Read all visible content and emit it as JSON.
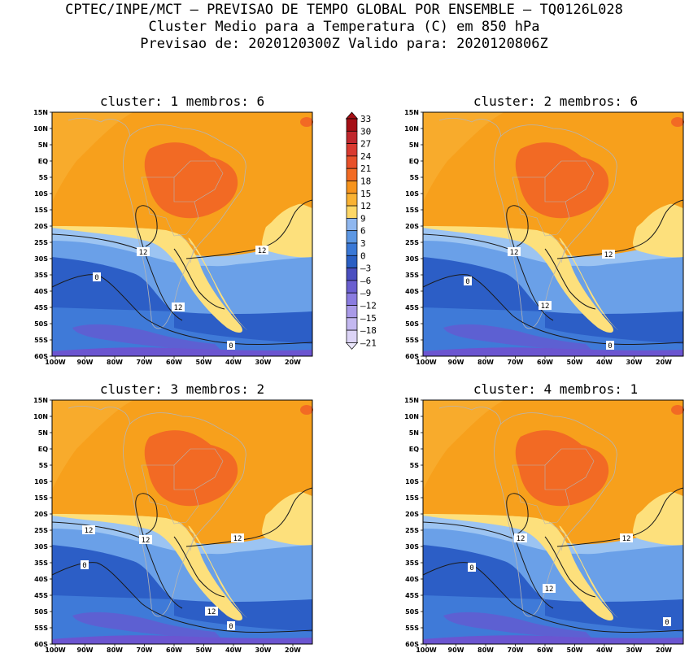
{
  "header": {
    "line1": "CPTEC/INPE/MCT – PREVISAO DE TEMPO GLOBAL POR ENSEMBLE – TQ0126L028",
    "line2": "Cluster Medio para a Temperatura (C) em 850 hPa",
    "line3": "Previsao de: 2020120300Z   Valido para: 2020120806Z"
  },
  "map": {
    "lat_ticks": [
      "15N",
      "10N",
      "5N",
      "EQ",
      "5S",
      "10S",
      "15S",
      "20S",
      "25S",
      "30S",
      "35S",
      "40S",
      "45S",
      "50S",
      "55S",
      "60S"
    ],
    "lon_ticks": [
      "100W",
      "90W",
      "80W",
      "70W",
      "60W",
      "50W",
      "40W",
      "30W",
      "20W"
    ]
  },
  "panels": [
    {
      "title": "cluster: 1   membros: 6",
      "contour_labels": [
        "12",
        "12",
        "0",
        "12",
        "0"
      ]
    },
    {
      "title": "cluster: 2   membros: 6",
      "contour_labels": [
        "12",
        "12",
        "0",
        "12",
        "0"
      ]
    },
    {
      "title": "cluster: 3   membros: 2",
      "contour_labels": [
        "12",
        "12",
        "12",
        "0",
        "12",
        "0"
      ]
    },
    {
      "title": "cluster: 4   membros: 1",
      "contour_labels": [
        "12",
        "12",
        "0",
        "12",
        "0"
      ]
    }
  ],
  "colorbar": {
    "levels": [
      "33",
      "30",
      "27",
      "24",
      "21",
      "18",
      "15",
      "12",
      "9",
      "6",
      "3",
      "0",
      "–3",
      "–6",
      "–9",
      "–12",
      "–15",
      "–18",
      "–21"
    ],
    "colors": [
      "#a50f15",
      "#c0272d",
      "#d93a30",
      "#e8512a",
      "#f26b23",
      "#f7941d",
      "#f9b233",
      "#fdd767",
      "#8fb7ef",
      "#5c97e3",
      "#3a78d6",
      "#2a5fc4",
      "#4a4fc0",
      "#6a5fd0",
      "#8a7ce0",
      "#a99ae8",
      "#c3b8f0",
      "#dcd4f6"
    ]
  },
  "colors": {
    "c_cold3": "#a88fe6",
    "c_cold2": "#6b55d0",
    "c_cold1": "#2c5ec6",
    "c_mid0": "#3f7ad8",
    "c_mid1": "#6aa0e8",
    "c_cool": "#9cc4f2",
    "c_yel": "#fde07c",
    "c_org1": "#f9b43a",
    "c_org2": "#f7a01c",
    "c_red": "#f26a24"
  }
}
